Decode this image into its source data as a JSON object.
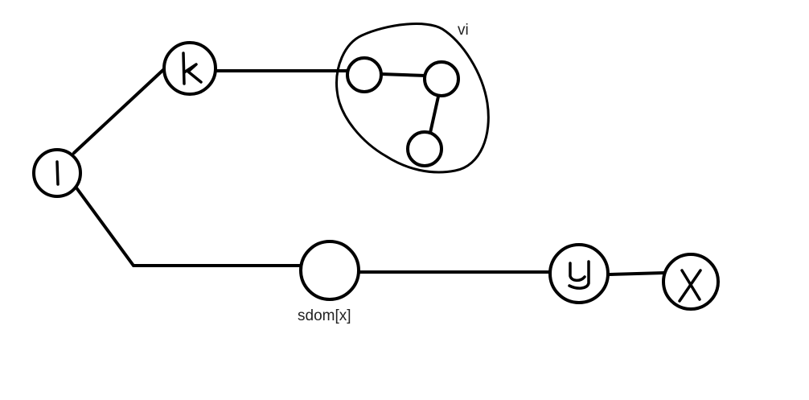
{
  "diagram": {
    "nodes": [
      {
        "id": "l",
        "label": "l"
      },
      {
        "id": "k",
        "label": "k"
      },
      {
        "id": "a",
        "label": ""
      },
      {
        "id": "b",
        "label": ""
      },
      {
        "id": "c",
        "label": ""
      },
      {
        "id": "sdom",
        "label": ""
      },
      {
        "id": "y",
        "label": "y"
      },
      {
        "id": "x",
        "label": "x"
      }
    ],
    "edges": [
      {
        "from": "l",
        "to": "k"
      },
      {
        "from": "k",
        "to": "a"
      },
      {
        "from": "a",
        "to": "b"
      },
      {
        "from": "b",
        "to": "c"
      },
      {
        "from": "l",
        "to": "sdom"
      },
      {
        "from": "sdom",
        "to": "y"
      },
      {
        "from": "y",
        "to": "x"
      }
    ],
    "annotations": {
      "vi": "vi",
      "sdom_x": "sdom[x]"
    }
  }
}
